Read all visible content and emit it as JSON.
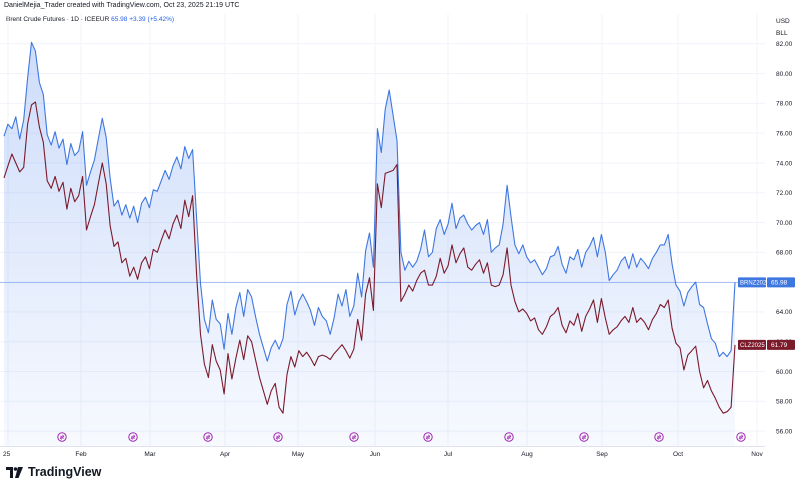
{
  "header": {
    "attribution": "DanielMejia_Trader created with TradingView.com, Oct 23, 2025 21:19 UTC"
  },
  "legend": {
    "symbol": "Brent Crude Futures · 1D · ICEEUR",
    "last": "65.98",
    "change": "+3.39 (+5.42%)"
  },
  "price_scale": {
    "currency": "USD",
    "unit": "BLL"
  },
  "footer": {
    "brand": "TradingView"
  },
  "colors": {
    "brent": "#3f77e0",
    "wti": "#7b1a2b",
    "grid": "#f0f3fa",
    "text": "#131722"
  },
  "chart_data": {
    "type": "line",
    "x_labels": [
      "25",
      "Feb",
      "Mar",
      "Apr",
      "May",
      "Jun",
      "Jul",
      "Aug",
      "Sep",
      "Oct",
      "Nov"
    ],
    "y_ticks": [
      56.0,
      58.0,
      60.0,
      62.0,
      64.0,
      66.0,
      68.0,
      70.0,
      72.0,
      74.0,
      76.0,
      78.0,
      80.0,
      82.0
    ],
    "ylim": [
      55.0,
      84.0
    ],
    "grid": true,
    "series": [
      {
        "name": "BRNZ2025",
        "label": "65.98",
        "area": true,
        "values": [
          75.8,
          76.6,
          76.3,
          77.1,
          75.6,
          76.9,
          79.7,
          82.1,
          81.5,
          79.4,
          78.6,
          75.9,
          75.2,
          76.1,
          75.0,
          75.6,
          73.9,
          75.3,
          74.5,
          74.8,
          76.1,
          72.5,
          73.4,
          74.2,
          75.6,
          77.0,
          75.7,
          73.0,
          71.1,
          71.5,
          70.5,
          71.2,
          70.3,
          71.1,
          70.0,
          71.3,
          71.7,
          71.0,
          72.2,
          72.1,
          72.8,
          73.5,
          72.9,
          73.8,
          74.4,
          73.6,
          75.1,
          74.3,
          74.9,
          70.3,
          65.9,
          63.5,
          62.6,
          64.8,
          63.5,
          63.2,
          61.5,
          63.9,
          62.5,
          64.3,
          65.3,
          63.7,
          65.5,
          65.0,
          63.7,
          62.5,
          61.6,
          60.7,
          61.6,
          62.1,
          61.5,
          62.2,
          64.5,
          65.4,
          63.8,
          64.7,
          65.2,
          64.7,
          64.1,
          63.1,
          64.3,
          63.7,
          63.4,
          62.5,
          63.6,
          65.2,
          64.4,
          65.5,
          63.7,
          64.4,
          66.6,
          65.0,
          68.1,
          69.3,
          67.0,
          76.3,
          74.7,
          77.6,
          78.9,
          77.2,
          75.5,
          68.0,
          66.8,
          67.4,
          67.0,
          67.4,
          68.2,
          69.5,
          67.7,
          68.0,
          69.6,
          70.2,
          69.2,
          69.9,
          71.3,
          69.6,
          70.3,
          70.5,
          69.9,
          69.5,
          69.8,
          70.0,
          69.2,
          70.2,
          68.0,
          68.3,
          68.5,
          69.9,
          72.5,
          70.4,
          68.5,
          67.9,
          68.5,
          67.7,
          67.3,
          67.5,
          67.0,
          66.5,
          66.9,
          67.7,
          67.8,
          68.4,
          67.2,
          66.6,
          67.7,
          67.5,
          68.2,
          67.0,
          68.0,
          68.4,
          69.0,
          67.7,
          69.2,
          68.0,
          66.1,
          66.5,
          66.8,
          67.4,
          67.7,
          66.9,
          67.9,
          67.0,
          67.6,
          67.3,
          66.9,
          67.6,
          68.0,
          68.5,
          68.5,
          69.2,
          67.2,
          65.8,
          65.4,
          64.4,
          65.3,
          65.7,
          66.0,
          64.5,
          64.3,
          63.2,
          62.2,
          61.9,
          61.0,
          61.3,
          61.0,
          61.4,
          65.98
        ]
      },
      {
        "name": "CLZ2025",
        "label": "61.79",
        "area": false,
        "values": [
          73.0,
          73.8,
          74.6,
          74.0,
          73.4,
          73.7,
          76.6,
          77.9,
          78.1,
          76.4,
          75.4,
          72.8,
          72.3,
          73.1,
          72.1,
          72.7,
          70.9,
          72.3,
          71.4,
          71.8,
          73.1,
          69.5,
          70.4,
          71.2,
          72.6,
          74.0,
          72.6,
          69.8,
          68.4,
          68.7,
          67.3,
          67.6,
          66.4,
          67.0,
          66.2,
          67.3,
          67.7,
          66.9,
          68.2,
          68.0,
          68.8,
          69.5,
          68.9,
          69.9,
          70.5,
          69.6,
          71.5,
          70.4,
          71.8,
          66.5,
          62.5,
          60.5,
          59.6,
          61.8,
          60.7,
          60.1,
          58.5,
          61.2,
          59.5,
          60.9,
          62.1,
          60.8,
          62.4,
          62.0,
          60.8,
          59.6,
          58.7,
          57.8,
          58.7,
          59.2,
          57.6,
          57.2,
          59.8,
          61.0,
          60.3,
          61.4,
          61.0,
          61.3,
          60.9,
          60.4,
          61.0,
          61.1,
          61.0,
          60.8,
          61.2,
          61.5,
          61.8,
          61.4,
          60.9,
          61.5,
          63.5,
          62.1,
          65.2,
          66.3,
          64.1,
          72.6,
          71.0,
          73.3,
          73.4,
          73.5,
          73.9,
          64.7,
          65.2,
          65.8,
          65.4,
          66.1,
          66.6,
          66.8,
          65.8,
          65.8,
          66.4,
          67.6,
          66.6,
          67.1,
          68.5,
          67.3,
          67.9,
          68.3,
          67.0,
          66.8,
          67.2,
          67.5,
          66.6,
          67.3,
          65.8,
          65.7,
          65.8,
          66.5,
          68.3,
          65.8,
          64.7,
          64.0,
          64.2,
          63.9,
          63.4,
          63.6,
          62.8,
          62.5,
          63.0,
          63.7,
          63.9,
          64.3,
          63.1,
          62.6,
          63.4,
          63.1,
          63.9,
          62.7,
          63.7,
          64.2,
          64.8,
          63.3,
          64.9,
          63.6,
          62.5,
          62.8,
          63.0,
          63.4,
          63.7,
          63.3,
          64.3,
          63.3,
          63.6,
          63.3,
          62.8,
          63.5,
          63.9,
          64.5,
          64.3,
          64.8,
          62.9,
          61.9,
          61.6,
          60.1,
          61.1,
          61.4,
          61.7,
          60.0,
          58.9,
          59.4,
          58.7,
          58.2,
          57.6,
          57.2,
          57.3,
          57.6,
          61.79
        ]
      }
    ]
  }
}
